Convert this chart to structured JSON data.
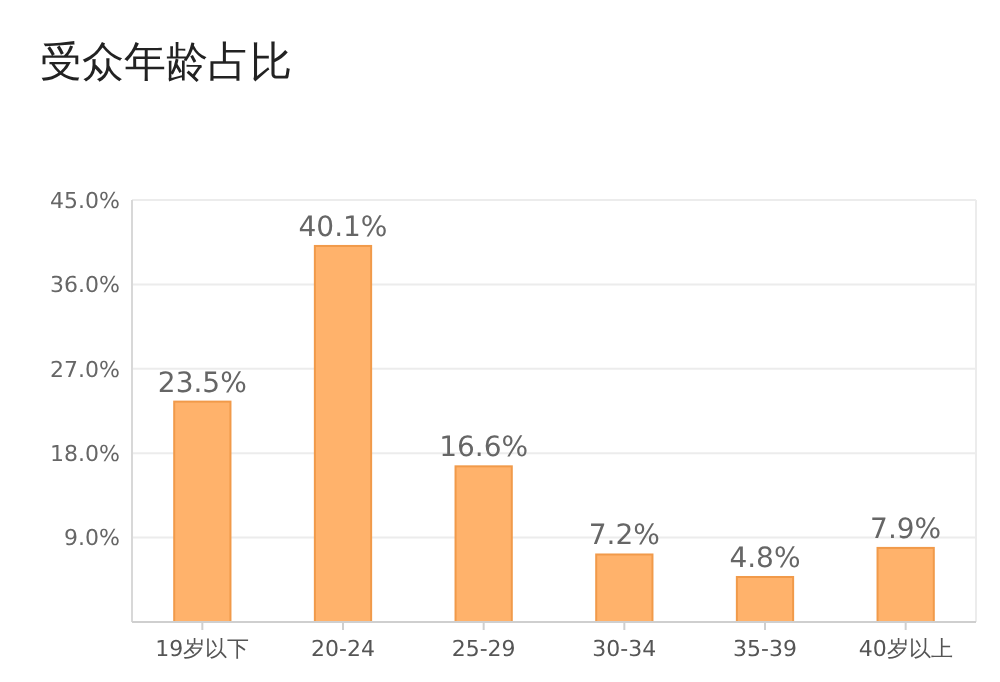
{
  "chart_data": {
    "type": "bar",
    "title": "受众年龄占比",
    "categories": [
      "19岁以下",
      "20-24",
      "25-29",
      "30-34",
      "35-39",
      "40岁以上"
    ],
    "values": [
      23.5,
      40.1,
      16.6,
      7.2,
      4.8,
      7.9
    ],
    "value_labels": [
      "23.5%",
      "40.1%",
      "16.6%",
      "7.2%",
      "4.8%",
      "7.9%"
    ],
    "color": "#ffb26b",
    "ylim": [
      0,
      45
    ],
    "yticks": [
      {
        "value": 9,
        "label": "9.0%"
      },
      {
        "value": 18,
        "label": "18.0%"
      },
      {
        "value": 27,
        "label": "27.0%"
      },
      {
        "value": 36,
        "label": "36.0%"
      },
      {
        "value": 45,
        "label": "45.0%"
      }
    ],
    "grid": "y"
  }
}
